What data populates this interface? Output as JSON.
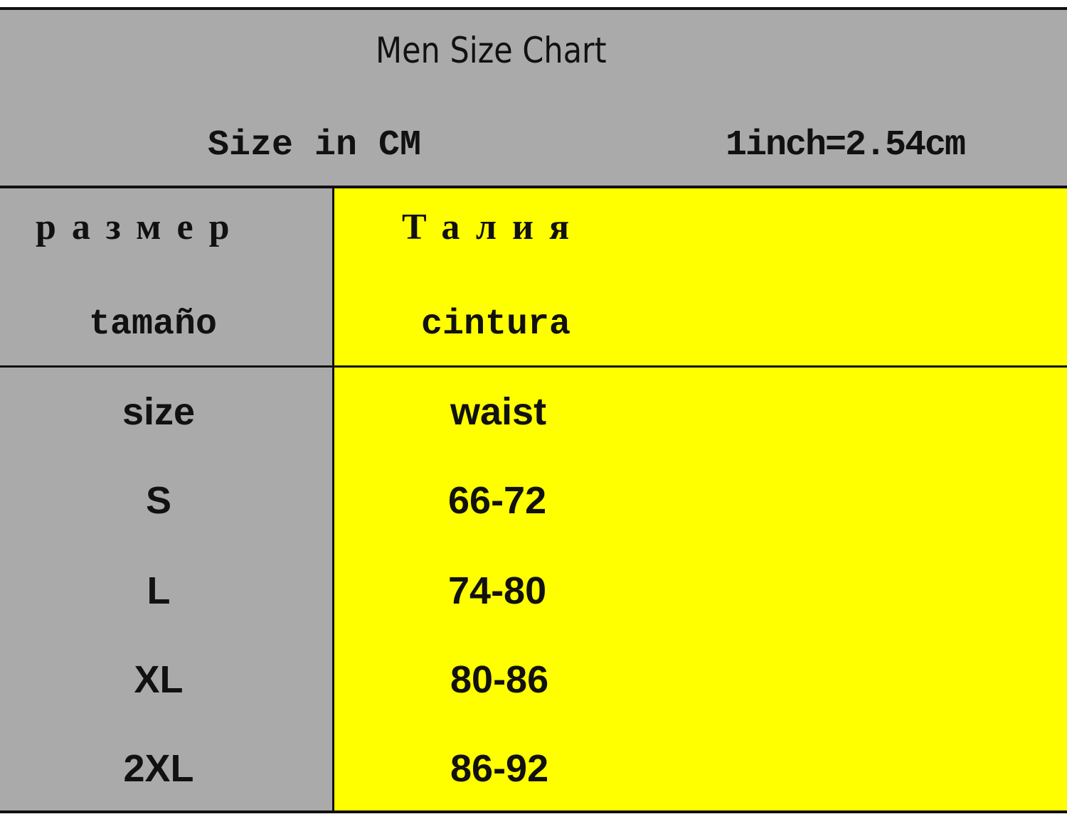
{
  "header": {
    "title": "Men Size Chart",
    "unit_note": "Size in CM",
    "conversion": "1inch=2.54cm"
  },
  "column_headers": {
    "size_ru": "размер",
    "size_es": "tamaño",
    "waist_ru": "Талия",
    "waist_es": "cintura"
  },
  "table": {
    "columns": [
      "size",
      "waist"
    ],
    "rows": [
      {
        "size": "S",
        "waist": "66-72"
      },
      {
        "size": "L",
        "waist": "74-80"
      },
      {
        "size": "XL",
        "waist": "80-86"
      },
      {
        "size": "2XL",
        "waist": "86-92"
      }
    ]
  },
  "colors": {
    "header_bg": "#aaaaaa",
    "waist_bg": "#ffff00",
    "border": "#111111"
  }
}
